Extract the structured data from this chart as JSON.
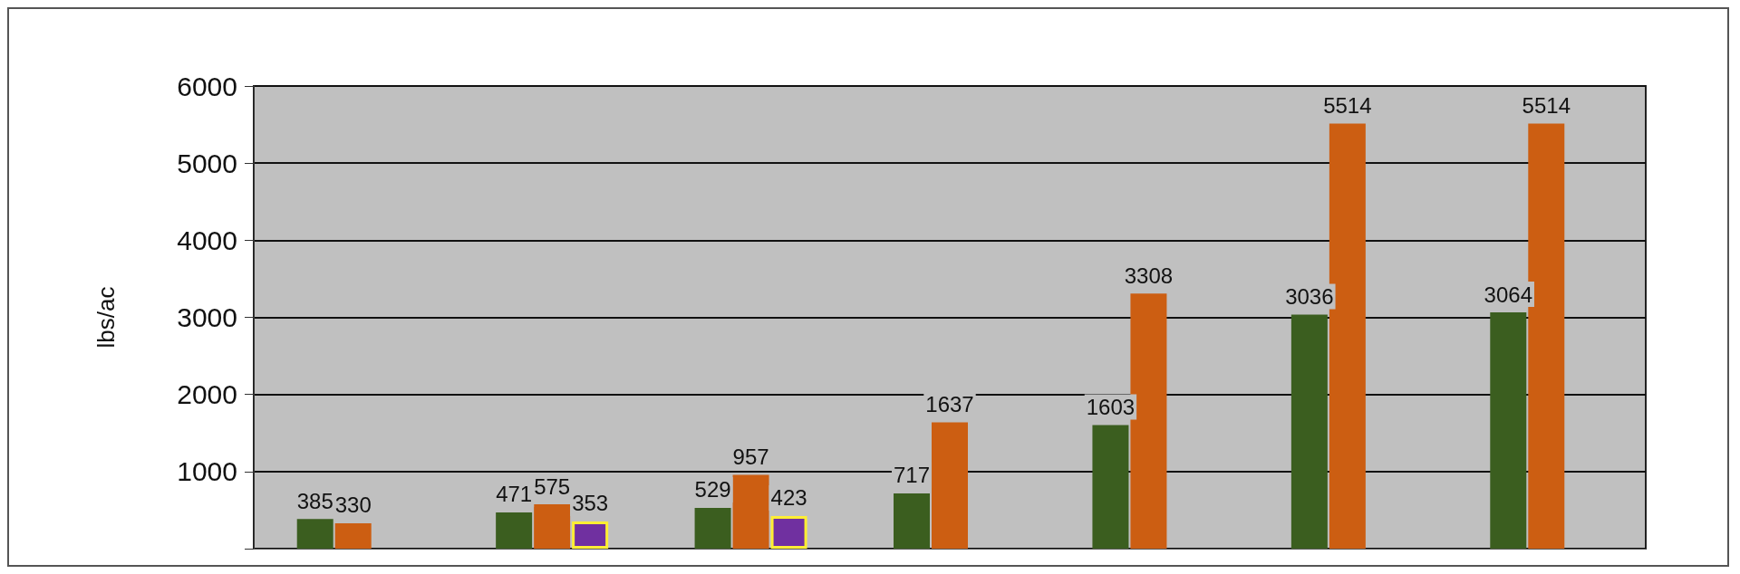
{
  "chart_data": {
    "type": "bar",
    "ylabel": "lbs/ac",
    "categories": [
      null,
      null,
      null,
      null,
      null,
      null,
      null
    ],
    "series": [
      {
        "color": "#3b5e1f",
        "values": [
          385,
          471,
          529,
          717,
          1603,
          3036,
          3064
        ]
      },
      {
        "color": "#cc5e12",
        "values": [
          330,
          575,
          957,
          1637,
          3308,
          5514,
          5514
        ]
      },
      {
        "color": "#7030a0",
        "values": [
          null,
          353,
          423,
          null,
          null,
          null,
          null
        ]
      }
    ],
    "ylim": [
      0,
      6000
    ],
    "yticks": [
      {
        "value": 0,
        "label": null
      },
      1000,
      2000,
      3000,
      4000,
      5000,
      6000
    ],
    "grid": "y",
    "data_labels": true
  }
}
